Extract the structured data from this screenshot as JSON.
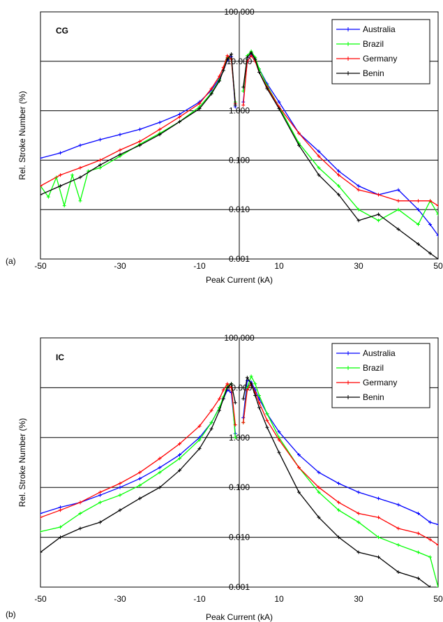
{
  "colors": {
    "Australia": "#0000ff",
    "Brazil": "#00ff00",
    "Germany": "#ff0000",
    "Benin": "#000000"
  },
  "chart_data": [
    {
      "type": "line",
      "panel_label": "(a)",
      "panel_title": "CG",
      "xlabel": "Peak Current (kA)",
      "ylabel": "Rel. Stroke Number (%)",
      "x_range": [
        -50,
        50
      ],
      "y_range": [
        0.001,
        100
      ],
      "y_scale": "log",
      "x_ticks": [
        "-50",
        "-30",
        "-10",
        "10",
        "30",
        "50"
      ],
      "y_ticks": [
        "100.000",
        "10.000",
        "1.000",
        "0.100",
        "0.010",
        "0.001"
      ],
      "grid": "horizontal",
      "legend_position": "top-right",
      "legend": [
        "Australia",
        "Brazil",
        "Germany",
        "Benin"
      ],
      "series": [
        {
          "name": "Australia",
          "neg": {
            "x": [
              -50,
              -45,
              -40,
              -35,
              -30,
              -25,
              -20,
              -15,
              -10,
              -7,
              -5,
              -4,
              -3,
              -2,
              -1
            ],
            "y": [
              0.11,
              0.14,
              0.2,
              0.26,
              0.33,
              0.42,
              0.58,
              0.85,
              1.5,
              2.6,
              4.5,
              6.5,
              10.5,
              12.5,
              1.2
            ]
          },
          "pos": {
            "x": [
              1,
              2,
              3,
              4,
              5,
              7,
              10,
              15,
              20,
              25,
              30,
              35,
              40,
              45,
              48,
              50
            ],
            "y": [
              1.5,
              10,
              14,
              11,
              7,
              3.5,
              1.5,
              0.35,
              0.15,
              0.06,
              0.03,
              0.02,
              0.025,
              0.01,
              0.005,
              0.003
            ]
          }
        },
        {
          "name": "Brazil",
          "neg": {
            "x": [
              -50,
              -48,
              -46,
              -44,
              -42,
              -40,
              -38,
              -35,
              -30,
              -25,
              -20,
              -15,
              -10,
              -7,
              -5,
              -4,
              -3,
              -2,
              -1
            ],
            "y": [
              0.03,
              0.018,
              0.045,
              0.012,
              0.05,
              0.015,
              0.06,
              0.07,
              0.12,
              0.21,
              0.35,
              0.6,
              1.2,
              2.3,
              4.2,
              6.5,
              12,
              11,
              1.5
            ]
          },
          "pos": {
            "x": [
              1,
              2,
              3,
              4,
              5,
              7,
              10,
              15,
              20,
              25,
              30,
              35,
              40,
              45,
              48,
              50
            ],
            "y": [
              2.5,
              13,
              16,
              12,
              7,
              3.2,
              1.2,
              0.22,
              0.07,
              0.03,
              0.01,
              0.006,
              0.01,
              0.005,
              0.015,
              0.008
            ]
          }
        },
        {
          "name": "Germany",
          "neg": {
            "x": [
              -50,
              -45,
              -40,
              -35,
              -30,
              -25,
              -20,
              -15,
              -10,
              -7,
              -5,
              -4,
              -3,
              -2,
              -1
            ],
            "y": [
              0.03,
              0.05,
              0.07,
              0.1,
              0.16,
              0.24,
              0.42,
              0.75,
              1.4,
              2.8,
              5,
              7.5,
              13,
              11,
              1.4
            ]
          },
          "pos": {
            "x": [
              1,
              2,
              3,
              4,
              5,
              7,
              10,
              15,
              20,
              25,
              30,
              35,
              40,
              45,
              48,
              50
            ],
            "y": [
              1.3,
              10,
              13,
              10,
              6,
              3,
              1.2,
              0.35,
              0.12,
              0.05,
              0.025,
              0.02,
              0.015,
              0.015,
              0.015,
              0.012
            ]
          }
        },
        {
          "name": "Benin",
          "neg": {
            "x": [
              -50,
              -45,
              -40,
              -35,
              -30,
              -25,
              -20,
              -15,
              -10,
              -7,
              -5,
              -4,
              -3,
              -2,
              -1
            ],
            "y": [
              0.02,
              0.03,
              0.045,
              0.08,
              0.13,
              0.2,
              0.33,
              0.6,
              1.1,
              2.2,
              4,
              6.5,
              11,
              14,
              1.3
            ]
          },
          "pos": {
            "x": [
              1,
              2,
              3,
              4,
              5,
              7,
              10,
              15,
              20,
              25,
              30,
              35,
              40,
              45,
              48,
              50
            ],
            "y": [
              3,
              12,
              15,
              11,
              6,
              2.8,
              1.1,
              0.2,
              0.05,
              0.02,
              0.006,
              0.008,
              0.004,
              0.002,
              0.0013,
              0.001
            ]
          }
        }
      ]
    },
    {
      "type": "line",
      "panel_label": "(b)",
      "panel_title": "IC",
      "xlabel": "Peak Current (kA)",
      "ylabel": "Rel. Stroke Number (%)",
      "x_range": [
        -50,
        50
      ],
      "y_range": [
        0.001,
        100
      ],
      "y_scale": "log",
      "x_ticks": [
        "-50",
        "-30",
        "-10",
        "10",
        "30",
        "50"
      ],
      "y_ticks": [
        "100.000",
        "10.000",
        "1.000",
        "0.100",
        "0.010",
        "0.001"
      ],
      "grid": "horizontal",
      "legend_position": "top-right",
      "legend": [
        "Australia",
        "Brazil",
        "Germany",
        "Benin"
      ],
      "series": [
        {
          "name": "Australia",
          "neg": {
            "x": [
              -50,
              -45,
              -40,
              -35,
              -30,
              -25,
              -20,
              -15,
              -10,
              -7,
              -5,
              -4,
              -3,
              -2,
              -1
            ],
            "y": [
              0.03,
              0.04,
              0.05,
              0.07,
              0.1,
              0.15,
              0.25,
              0.45,
              1,
              2,
              4,
              6,
              9,
              8,
              1.2
            ]
          },
          "pos": {
            "x": [
              1,
              2,
              3,
              4,
              5,
              7,
              10,
              15,
              20,
              25,
              30,
              35,
              40,
              45,
              48,
              50
            ],
            "y": [
              2.5,
              14,
              13,
              9,
              6,
              3,
              1.3,
              0.45,
              0.2,
              0.12,
              0.08,
              0.06,
              0.045,
              0.03,
              0.02,
              0.018
            ]
          }
        },
        {
          "name": "Brazil",
          "neg": {
            "x": [
              -50,
              -45,
              -40,
              -35,
              -30,
              -25,
              -20,
              -15,
              -10,
              -7,
              -5,
              -4,
              -3,
              -2,
              -1
            ],
            "y": [
              0.013,
              0.016,
              0.03,
              0.05,
              0.07,
              0.11,
              0.2,
              0.38,
              0.9,
              2,
              4,
              6.5,
              11,
              12,
              1
            ]
          },
          "pos": {
            "x": [
              1,
              2,
              3,
              4,
              5,
              7,
              10,
              15,
              20,
              25,
              30,
              35,
              40,
              45,
              48,
              50
            ],
            "y": [
              2,
              10,
              17,
              12,
              7,
              3,
              1,
              0.25,
              0.08,
              0.035,
              0.02,
              0.01,
              0.007,
              0.005,
              0.004,
              0.001
            ]
          }
        },
        {
          "name": "Germany",
          "neg": {
            "x": [
              -50,
              -45,
              -40,
              -35,
              -30,
              -25,
              -20,
              -15,
              -10,
              -7,
              -5,
              -4,
              -3,
              -2,
              -1
            ],
            "y": [
              0.025,
              0.035,
              0.05,
              0.08,
              0.12,
              0.2,
              0.38,
              0.75,
              1.7,
              3.5,
              6,
              9,
              12,
              10,
              1.8
            ]
          },
          "pos": {
            "x": [
              1,
              2,
              3,
              4,
              5,
              7,
              10,
              15,
              20,
              25,
              30,
              35,
              40,
              45,
              48,
              50
            ],
            "y": [
              2,
              9,
              12,
              8,
              5,
              2.2,
              0.9,
              0.25,
              0.1,
              0.05,
              0.03,
              0.025,
              0.015,
              0.012,
              0.009,
              0.007
            ]
          }
        },
        {
          "name": "Benin",
          "neg": {
            "x": [
              -50,
              -45,
              -40,
              -35,
              -30,
              -25,
              -20,
              -15,
              -10,
              -7,
              -5,
              -4,
              -3,
              -2,
              -1
            ],
            "y": [
              0.005,
              0.01,
              0.015,
              0.02,
              0.035,
              0.06,
              0.1,
              0.22,
              0.6,
              1.5,
              3.5,
              6,
              10,
              12,
              5
            ]
          },
          "pos": {
            "x": [
              1,
              2,
              3,
              4,
              5,
              7,
              10,
              15,
              20,
              25,
              30,
              35,
              40,
              45,
              48,
              50
            ],
            "y": [
              6,
              16,
              12,
              7,
              4,
              1.6,
              0.5,
              0.08,
              0.025,
              0.01,
              0.005,
              0.004,
              0.002,
              0.0015,
              0.001,
              0.0008
            ]
          }
        }
      ]
    }
  ]
}
